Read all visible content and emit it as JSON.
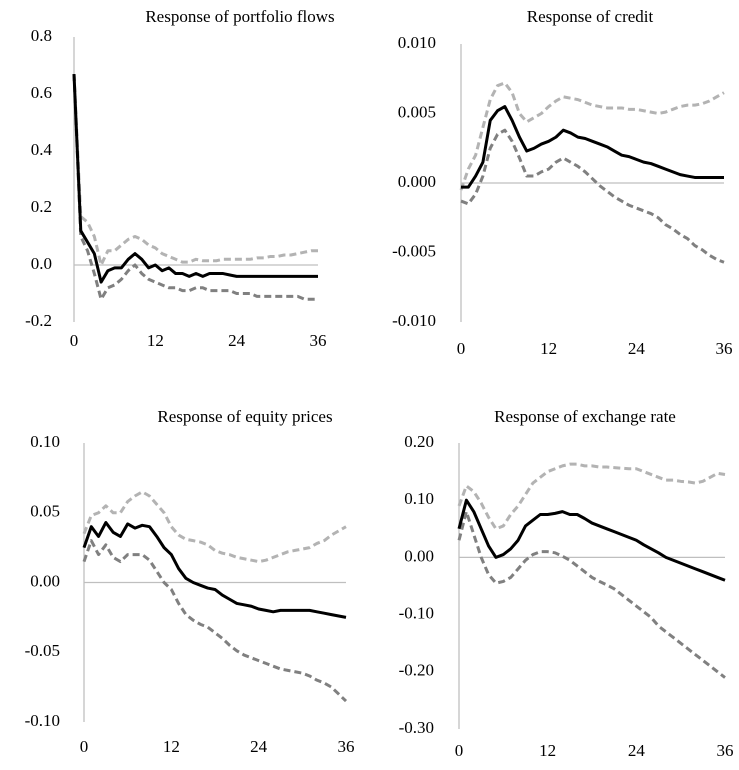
{
  "chart_data": [
    {
      "type": "line",
      "title": "Response of portfolio flows",
      "x": [
        0,
        1,
        2,
        3,
        4,
        5,
        6,
        7,
        8,
        9,
        10,
        11,
        12,
        13,
        14,
        15,
        16,
        17,
        18,
        19,
        20,
        21,
        22,
        23,
        24,
        25,
        26,
        27,
        28,
        29,
        30,
        31,
        32,
        33,
        34,
        35,
        36
      ],
      "xlim": [
        0,
        36
      ],
      "xticks": [
        0,
        12,
        24,
        36
      ],
      "ylim": [
        -0.2,
        0.8
      ],
      "yticks": [
        -0.2,
        {
          "value": 0,
          "label": "0.0"
        },
        0.2,
        0.4,
        0.6,
        0.8
      ],
      "series": [
        {
          "color": "#b3b3b3",
          "line_style": "dashed",
          "values": [
            0.67,
            0.17,
            0.15,
            0.1,
            0.0,
            0.05,
            0.05,
            0.07,
            0.09,
            0.1,
            0.09,
            0.07,
            0.06,
            0.04,
            0.03,
            0.02,
            0.01,
            0.01,
            0.02,
            0.015,
            0.015,
            0.015,
            0.02,
            0.02,
            0.02,
            0.02,
            0.02,
            0.025,
            0.025,
            0.03,
            0.03,
            0.035,
            0.035,
            0.04,
            0.045,
            0.05,
            0.05
          ]
        },
        {
          "color": "#808080",
          "line_style": "dashed",
          "values": [
            0.67,
            0.1,
            0.05,
            -0.03,
            -0.12,
            -0.08,
            -0.07,
            -0.05,
            -0.02,
            0.0,
            -0.03,
            -0.05,
            -0.06,
            -0.07,
            -0.08,
            -0.08,
            -0.09,
            -0.09,
            -0.08,
            -0.08,
            -0.09,
            -0.09,
            -0.09,
            -0.09,
            -0.1,
            -0.1,
            -0.1,
            -0.11,
            -0.11,
            -0.11,
            -0.11,
            -0.11,
            -0.11,
            -0.11,
            -0.12,
            -0.12,
            -0.12
          ]
        },
        {
          "color": "#000000",
          "line_style": "solid",
          "values": [
            0.67,
            0.12,
            0.08,
            0.04,
            -0.06,
            -0.02,
            -0.01,
            -0.01,
            0.02,
            0.04,
            0.02,
            -0.01,
            0.0,
            -0.02,
            -0.01,
            -0.03,
            -0.03,
            -0.04,
            -0.03,
            -0.04,
            -0.03,
            -0.03,
            -0.03,
            -0.035,
            -0.04,
            -0.04,
            -0.04,
            -0.04,
            -0.04,
            -0.04,
            -0.04,
            -0.04,
            -0.04,
            -0.04,
            -0.04,
            -0.04,
            -0.04
          ]
        }
      ]
    },
    {
      "type": "line",
      "title": "Response of credit",
      "x": [
        0,
        1,
        2,
        3,
        4,
        5,
        6,
        7,
        8,
        9,
        10,
        11,
        12,
        13,
        14,
        15,
        16,
        17,
        18,
        19,
        20,
        21,
        22,
        23,
        24,
        25,
        26,
        27,
        28,
        29,
        30,
        31,
        32,
        33,
        34,
        35,
        36
      ],
      "xlim": [
        0,
        36
      ],
      "xticks": [
        0,
        12,
        24,
        36
      ],
      "ylim": [
        -0.01,
        0.01
      ],
      "yticks": [
        {
          "value": -0.01,
          "label": "-0.010"
        },
        -0.005,
        {
          "value": 0,
          "label": "0.000"
        },
        0.005,
        {
          "value": 0.01,
          "label": "0.010"
        }
      ],
      "series": [
        {
          "color": "#b3b3b3",
          "line_style": "dashed",
          "values": [
            -0.0005,
            0.001,
            0.002,
            0.004,
            0.006,
            0.007,
            0.0072,
            0.0065,
            0.005,
            0.0044,
            0.0047,
            0.005,
            0.0055,
            0.0059,
            0.0062,
            0.0061,
            0.006,
            0.0058,
            0.0056,
            0.0055,
            0.0054,
            0.0054,
            0.0054,
            0.0053,
            0.0053,
            0.0052,
            0.0051,
            0.005,
            0.0051,
            0.0053,
            0.0055,
            0.0056,
            0.0056,
            0.0057,
            0.0059,
            0.0062,
            0.0065
          ]
        },
        {
          "color": "#808080",
          "line_style": "dashed",
          "values": [
            -0.0013,
            -0.0015,
            -0.0008,
            0.0005,
            0.0025,
            0.0035,
            0.0038,
            0.003,
            0.0018,
            0.0005,
            0.0005,
            0.0008,
            0.001,
            0.0015,
            0.0018,
            0.0015,
            0.0012,
            0.0008,
            0.0003,
            -0.0002,
            -0.0006,
            -0.001,
            -0.0013,
            -0.0016,
            -0.0018,
            -0.002,
            -0.0022,
            -0.0025,
            -0.003,
            -0.0033,
            -0.0037,
            -0.004,
            -0.0045,
            -0.0048,
            -0.0052,
            -0.0055,
            -0.0057
          ]
        },
        {
          "color": "#000000",
          "line_style": "solid",
          "values": [
            -0.0003,
            -0.0003,
            0.0005,
            0.0015,
            0.0045,
            0.0052,
            0.0055,
            0.0045,
            0.0033,
            0.0023,
            0.0025,
            0.0028,
            0.003,
            0.0033,
            0.0038,
            0.0036,
            0.0033,
            0.0032,
            0.003,
            0.0028,
            0.0026,
            0.0023,
            0.002,
            0.0019,
            0.0017,
            0.0015,
            0.0014,
            0.0012,
            0.001,
            0.0008,
            0.0006,
            0.0005,
            0.0004,
            0.0004,
            0.0004,
            0.0004,
            0.0004
          ]
        }
      ]
    },
    {
      "type": "line",
      "title": "Response of equity prices",
      "x": [
        0,
        1,
        2,
        3,
        4,
        5,
        6,
        7,
        8,
        9,
        10,
        11,
        12,
        13,
        14,
        15,
        16,
        17,
        18,
        19,
        20,
        21,
        22,
        23,
        24,
        25,
        26,
        27,
        28,
        29,
        30,
        31,
        32,
        33,
        34,
        35,
        36
      ],
      "xlim": [
        0,
        36
      ],
      "xticks": [
        0,
        12,
        24,
        36
      ],
      "ylim": [
        -0.1,
        0.1
      ],
      "yticks": [
        {
          "value": -0.1,
          "label": "-0.10"
        },
        -0.05,
        {
          "value": 0,
          "label": "0.00"
        },
        0.05,
        {
          "value": 0.1,
          "label": "0.10"
        }
      ],
      "series": [
        {
          "color": "#b3b3b3",
          "line_style": "dashed",
          "values": [
            0.035,
            0.048,
            0.05,
            0.055,
            0.05,
            0.05,
            0.058,
            0.062,
            0.065,
            0.062,
            0.056,
            0.05,
            0.04,
            0.034,
            0.031,
            0.03,
            0.029,
            0.027,
            0.023,
            0.021,
            0.02,
            0.018,
            0.017,
            0.016,
            0.015,
            0.016,
            0.018,
            0.02,
            0.022,
            0.023,
            0.024,
            0.025,
            0.028,
            0.03,
            0.034,
            0.037,
            0.04
          ]
        },
        {
          "color": "#808080",
          "line_style": "dashed",
          "values": [
            0.015,
            0.03,
            0.02,
            0.027,
            0.018,
            0.015,
            0.02,
            0.02,
            0.02,
            0.016,
            0.008,
            0.0,
            -0.005,
            -0.015,
            -0.023,
            -0.027,
            -0.03,
            -0.032,
            -0.036,
            -0.04,
            -0.045,
            -0.049,
            -0.052,
            -0.054,
            -0.056,
            -0.058,
            -0.06,
            -0.062,
            -0.063,
            -0.064,
            -0.065,
            -0.067,
            -0.07,
            -0.072,
            -0.075,
            -0.08,
            -0.085
          ]
        },
        {
          "color": "#000000",
          "line_style": "solid",
          "values": [
            0.025,
            0.04,
            0.033,
            0.043,
            0.036,
            0.033,
            0.042,
            0.039,
            0.041,
            0.04,
            0.033,
            0.025,
            0.02,
            0.01,
            0.003,
            0.0,
            -0.002,
            -0.004,
            -0.005,
            -0.009,
            -0.012,
            -0.015,
            -0.016,
            -0.017,
            -0.019,
            -0.02,
            -0.021,
            -0.02,
            -0.02,
            -0.02,
            -0.02,
            -0.02,
            -0.021,
            -0.022,
            -0.023,
            -0.024,
            -0.025
          ]
        }
      ]
    },
    {
      "type": "line",
      "title": "Response of exchange rate",
      "x": [
        0,
        1,
        2,
        3,
        4,
        5,
        6,
        7,
        8,
        9,
        10,
        11,
        12,
        13,
        14,
        15,
        16,
        17,
        18,
        19,
        20,
        21,
        22,
        23,
        24,
        25,
        26,
        27,
        28,
        29,
        30,
        31,
        32,
        33,
        34,
        35,
        36
      ],
      "xlim": [
        0,
        36
      ],
      "xticks": [
        0,
        12,
        24,
        36
      ],
      "ylim": [
        -0.3,
        0.2
      ],
      "yticks": [
        {
          "value": -0.3,
          "label": "-0.30"
        },
        {
          "value": -0.2,
          "label": "-0.20"
        },
        {
          "value": -0.1,
          "label": "-0.10"
        },
        {
          "value": 0,
          "label": "0.00"
        },
        {
          "value": 0.1,
          "label": "0.10"
        },
        {
          "value": 0.2,
          "label": "0.20"
        }
      ],
      "series": [
        {
          "color": "#b3b3b3",
          "line_style": "dashed",
          "values": [
            0.09,
            0.125,
            0.115,
            0.095,
            0.07,
            0.05,
            0.055,
            0.075,
            0.09,
            0.11,
            0.13,
            0.14,
            0.15,
            0.155,
            0.16,
            0.163,
            0.163,
            0.16,
            0.16,
            0.158,
            0.158,
            0.157,
            0.156,
            0.155,
            0.155,
            0.15,
            0.145,
            0.14,
            0.135,
            0.135,
            0.133,
            0.132,
            0.13,
            0.133,
            0.14,
            0.147,
            0.145
          ]
        },
        {
          "color": "#808080",
          "line_style": "dashed",
          "values": [
            0.03,
            0.08,
            0.04,
            0.0,
            -0.03,
            -0.045,
            -0.042,
            -0.035,
            -0.02,
            -0.005,
            0.005,
            0.01,
            0.01,
            0.008,
            0.002,
            -0.005,
            -0.015,
            -0.025,
            -0.035,
            -0.042,
            -0.048,
            -0.055,
            -0.065,
            -0.075,
            -0.085,
            -0.095,
            -0.105,
            -0.12,
            -0.13,
            -0.14,
            -0.15,
            -0.16,
            -0.17,
            -0.18,
            -0.19,
            -0.2,
            -0.21
          ]
        },
        {
          "color": "#000000",
          "line_style": "solid",
          "values": [
            0.05,
            0.1,
            0.08,
            0.05,
            0.02,
            0.0,
            0.005,
            0.015,
            0.03,
            0.055,
            0.065,
            0.075,
            0.075,
            0.077,
            0.08,
            0.075,
            0.075,
            0.068,
            0.06,
            0.055,
            0.05,
            0.045,
            0.04,
            0.035,
            0.03,
            0.022,
            0.015,
            0.008,
            0.0,
            -0.005,
            -0.01,
            -0.015,
            -0.02,
            -0.025,
            -0.03,
            -0.035,
            -0.04
          ]
        }
      ]
    }
  ]
}
